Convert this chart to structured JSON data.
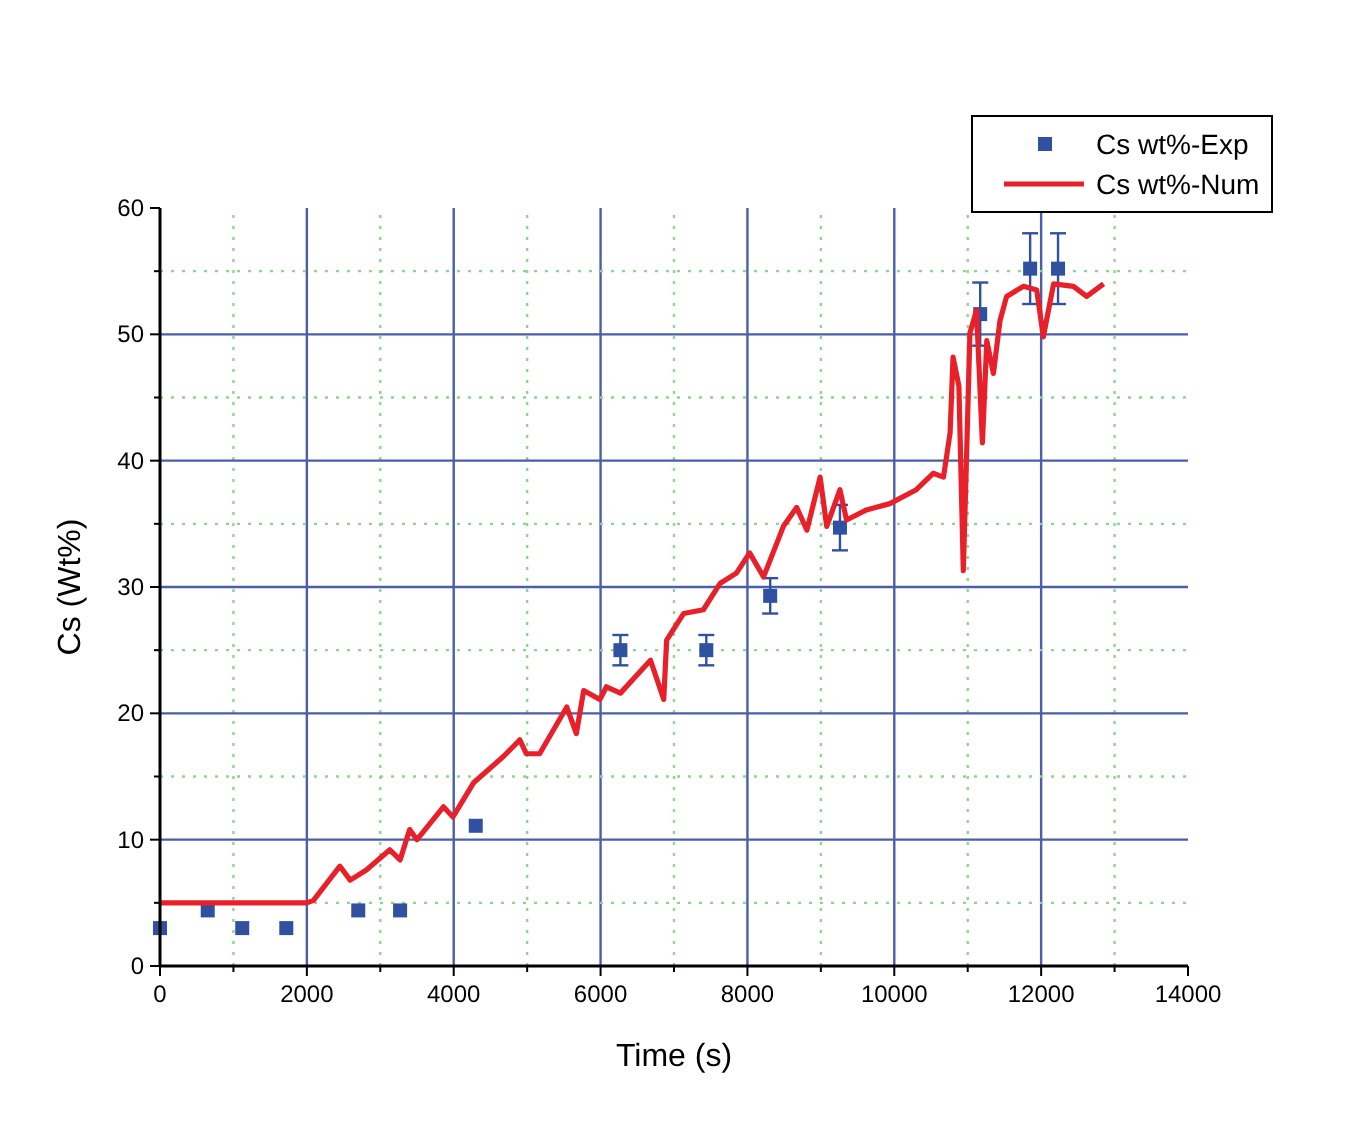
{
  "chart_data": {
    "type": "line",
    "xlabel": "Time (s)",
    "ylabel": "Cs (Wt%)",
    "xlim": [
      0,
      14000
    ],
    "xticks": [
      0,
      {
        "value": 1000,
        "label": null
      },
      2000,
      {
        "value": 3000,
        "label": null
      },
      4000,
      {
        "value": 5000,
        "label": null
      },
      6000,
      {
        "value": 7000,
        "label": null
      },
      8000,
      {
        "value": 9000,
        "label": null
      },
      10000,
      {
        "value": 11000,
        "label": null
      },
      12000,
      {
        "value": 13000,
        "label": null
      },
      14000
    ],
    "ylim": [
      0,
      60
    ],
    "yticks": [
      0,
      {
        "value": 5,
        "label": null
      },
      10,
      {
        "value": 15,
        "label": null
      },
      20,
      {
        "value": 25,
        "label": null
      },
      30,
      {
        "value": 35,
        "label": null
      },
      40,
      {
        "value": 45,
        "label": null
      },
      50,
      {
        "value": 55,
        "label": null
      },
      60
    ],
    "grid": true,
    "legend": "top right",
    "series": [
      {
        "name": "Cs wt%-Exp",
        "type": "scatter",
        "marker": "square",
        "color": "#3050a0",
        "x": [
          0,
          650,
          1120,
          1720,
          2700,
          3270,
          4300,
          6270,
          7440,
          8310,
          9260,
          11170,
          11850,
          12230
        ],
        "values": [
          3.0,
          4.4,
          3.0,
          3.0,
          4.4,
          4.4,
          11.1,
          25.0,
          25.0,
          29.3,
          34.7,
          51.6,
          55.2,
          55.2
        ],
        "errors": [
          null,
          null,
          null,
          null,
          null,
          null,
          null,
          1.2,
          1.2,
          1.4,
          1.8,
          2.5,
          2.8,
          2.8
        ]
      },
      {
        "name": "Cs wt%-Num",
        "color": "#e8202a",
        "x": [
          0,
          2000,
          2090,
          2450,
          2590,
          2810,
          3130,
          3270,
          3400,
          3500,
          3860,
          3990,
          4270,
          4680,
          4900,
          4990,
          5170,
          5540,
          5670,
          5770,
          5990,
          6080,
          6270,
          6680,
          6860,
          6900,
          7130,
          7400,
          7630,
          7850,
          8030,
          8220,
          8490,
          8670,
          8810,
          8990,
          9080,
          9260,
          9350,
          9620,
          9940,
          10300,
          10530,
          10670,
          10760,
          10800,
          10880,
          10940,
          10980,
          11030,
          11120,
          11200,
          11260,
          11350,
          11440,
          11530,
          11760,
          11940,
          12030,
          12170,
          12440,
          12620,
          12850
        ],
        "values": [
          5.0,
          5.0,
          5.2,
          7.9,
          6.8,
          7.6,
          9.2,
          8.4,
          10.8,
          10.0,
          12.6,
          11.8,
          14.5,
          16.6,
          17.9,
          16.8,
          16.8,
          20.5,
          18.4,
          21.8,
          21.1,
          22.1,
          21.6,
          24.2,
          21.1,
          25.8,
          27.9,
          28.2,
          30.3,
          31.1,
          32.7,
          30.8,
          34.8,
          36.3,
          34.5,
          38.7,
          34.8,
          37.7,
          35.3,
          36.1,
          36.6,
          37.7,
          39.0,
          38.7,
          42.2,
          48.2,
          45.9,
          31.3,
          39.5,
          50.1,
          51.9,
          41.4,
          49.5,
          46.9,
          51.1,
          53.0,
          53.8,
          53.5,
          49.8,
          54.0,
          53.8,
          53.0,
          54.0
        ]
      }
    ]
  }
}
